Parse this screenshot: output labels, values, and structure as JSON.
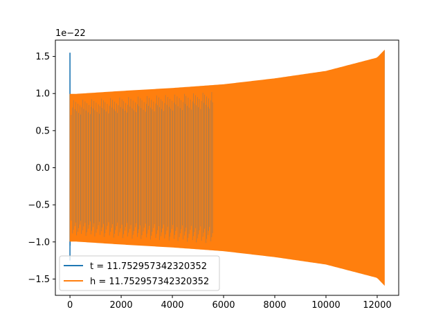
{
  "chart_data": {
    "type": "line",
    "title": "",
    "xlabel": "",
    "ylabel": "",
    "y_offset_label": "1e−22",
    "xlim": [
      -570,
      12840
    ],
    "ylim": [
      -1.72,
      1.72
    ],
    "x_ticks": [
      0,
      2000,
      4000,
      6000,
      8000,
      10000,
      12000
    ],
    "x_tick_labels": [
      "0",
      "2000",
      "4000",
      "6000",
      "8000",
      "10000",
      "12000"
    ],
    "y_ticks": [
      -1.5,
      -1.0,
      -0.5,
      0.0,
      0.5,
      1.0,
      1.5
    ],
    "y_tick_labels": [
      "−1.5",
      "−1.0",
      "−0.5",
      "0.0",
      "0.5",
      "1.0",
      "1.5"
    ],
    "grid": false,
    "legend_position": "lower-left",
    "series": [
      {
        "name": "t = 11.752957342320352",
        "color": "#1f77b4",
        "description_points": {
          "x": [
            0,
            15,
            30,
            200,
            2000,
            4000,
            6000,
            8000,
            10000,
            12000,
            12280
          ],
          "envelope": [
            1.55,
            1.0,
            0.99,
            0.99,
            1.03,
            1.07,
            1.12,
            1.2,
            1.3,
            1.48,
            1.58
          ]
        }
      },
      {
        "name": "h = 11.752957342320352",
        "color": "#ff7f0e",
        "description_points": {
          "x": [
            0,
            200,
            2000,
            4000,
            6000,
            8000,
            10000,
            12000,
            12280
          ],
          "envelope": [
            0.99,
            0.99,
            1.03,
            1.07,
            1.12,
            1.2,
            1.3,
            1.48,
            1.58
          ]
        }
      }
    ]
  }
}
